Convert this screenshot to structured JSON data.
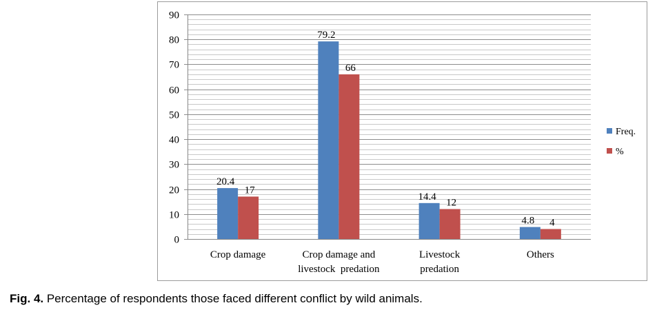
{
  "chart_data": {
    "type": "bar",
    "categories": [
      [
        "Crop damage"
      ],
      [
        "Crop damage and",
        "livestock  predation"
      ],
      [
        "Livestock",
        "predation"
      ],
      [
        "Others"
      ]
    ],
    "series": [
      {
        "name": "Freq.",
        "values": [
          20.4,
          79.2,
          14.4,
          4.8
        ],
        "labels": [
          "20.4",
          "79.2",
          "14.4",
          "4.8"
        ],
        "color": "#4f81bd"
      },
      {
        "name": "%",
        "values": [
          17,
          66,
          12,
          4
        ],
        "labels": [
          "17",
          "66",
          "12",
          "4"
        ],
        "color": "#c0504d"
      }
    ],
    "ylim": [
      0,
      90
    ],
    "yticks": [
      0,
      10,
      20,
      30,
      40,
      50,
      60,
      70,
      80,
      90
    ],
    "minor_gridlines": true,
    "legend_position": "right",
    "title": "",
    "xlabel": "",
    "ylabel": ""
  },
  "caption": {
    "label": "Fig. 4.",
    "text": " Percentage of respondents those faced different conflict by wild animals."
  }
}
